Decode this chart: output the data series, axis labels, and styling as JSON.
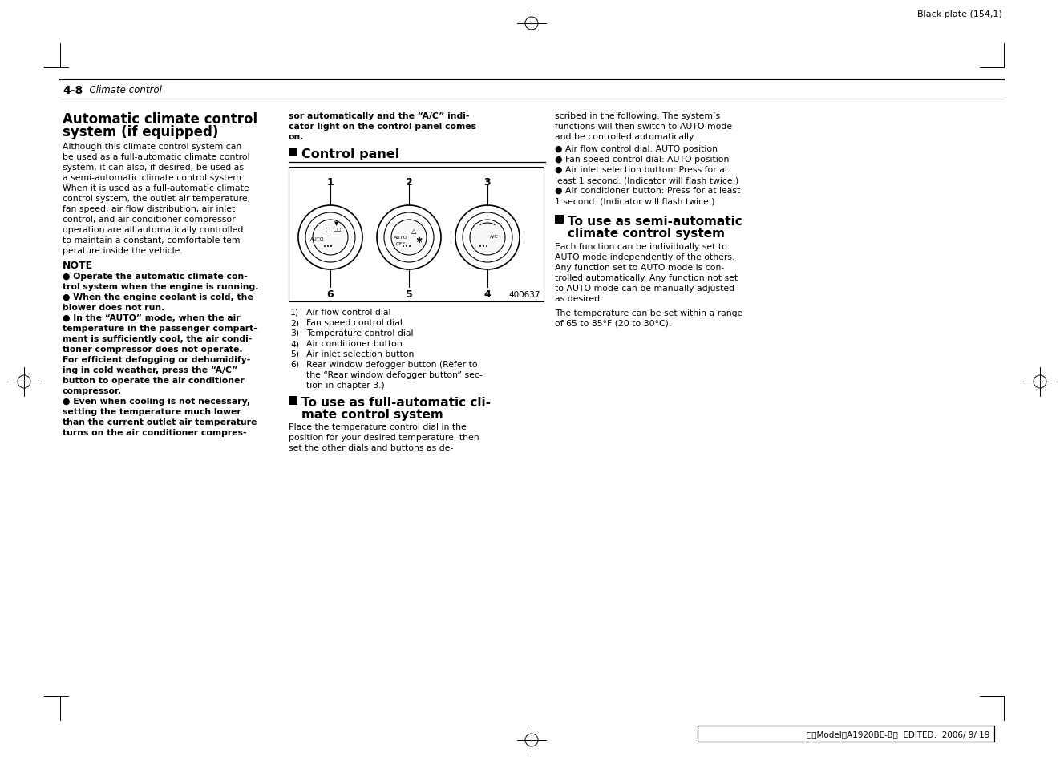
{
  "page_bg": "#ffffff",
  "header_text": "Black plate (154,1)",
  "section_label": "4-8",
  "section_italic": "  Climate control",
  "footer_text": "北米ModelＢA1920BE-B＂  EDITED:  2006/ 9/ 19",
  "col1_title1": "Automatic climate control",
  "col1_title2": "system (if equipped)",
  "col1_para": [
    "Although this climate control system can",
    "be used as a full-automatic climate control",
    "system, it can also, if desired, be used as",
    "a semi-automatic climate control system.",
    "When it is used as a full-automatic climate",
    "control system, the outlet air temperature,",
    "fan speed, air flow distribution, air inlet",
    "control, and air conditioner compressor",
    "operation are all automatically controlled",
    "to maintain a constant, comfortable tem-",
    "perature inside the vehicle."
  ],
  "note_title": "NOTE",
  "note_lines": [
    [
      "●",
      " Operate the automatic climate con-"
    ],
    [
      "",
      "trol system when the engine is running."
    ],
    [
      "●",
      " When the engine coolant is cold, the"
    ],
    [
      "",
      "blower does not run."
    ],
    [
      "●",
      " In the “AUTO” mode, when the air"
    ],
    [
      "",
      "temperature in the passenger compart-"
    ],
    [
      "",
      "ment is sufficiently cool, the air condi-"
    ],
    [
      "",
      "tioner compressor does not operate."
    ],
    [
      "",
      "For efficient defogging or dehumidify-"
    ],
    [
      "",
      "ing in cold weather, press the “A/C”"
    ],
    [
      "",
      "button to operate the air conditioner"
    ],
    [
      "",
      "compressor."
    ],
    [
      "●",
      " Even when cooling is not necessary,"
    ],
    [
      "",
      "setting the temperature much lower"
    ],
    [
      "",
      "than the current outlet air temperature"
    ],
    [
      "",
      "turns on the air conditioner compres-"
    ]
  ],
  "col2_bold_lines": [
    "sor automatically and the “A/C” indi-",
    "cator light on the control panel comes",
    "on."
  ],
  "control_panel_title": "Control panel",
  "dial_labels_top": [
    "1",
    "2",
    "3"
  ],
  "dial_labels_bottom": [
    "6",
    "5",
    "4"
  ],
  "diagram_number": "400637",
  "num_list": [
    [
      "1)",
      "Air flow control dial"
    ],
    [
      "2)",
      "Fan speed control dial"
    ],
    [
      "3)",
      "Temperature control dial"
    ],
    [
      "4)",
      "Air conditioner button"
    ],
    [
      "5)",
      "Air inlet selection button"
    ],
    [
      "6)",
      "Rear window defogger button (Refer to"
    ],
    [
      "",
      "the “Rear window defogger button” sec-"
    ],
    [
      "",
      "tion in chapter 3.)"
    ]
  ],
  "full_auto_title1": "To use as full-automatic cli-",
  "full_auto_title2": "mate control system",
  "full_auto_lines": [
    "Place the temperature control dial in the",
    "position for your desired temperature, then",
    "set the other dials and buttons as de-"
  ],
  "col3_intro": [
    "scribed in the following. The system’s",
    "functions will then switch to AUTO mode",
    "and be controlled automatically."
  ],
  "col3_bullets": [
    [
      "●",
      " Air flow control dial: AUTO position"
    ],
    [
      "●",
      " Fan speed control dial: AUTO position"
    ],
    [
      "●",
      " Air inlet selection button: Press for at"
    ],
    [
      "",
      "least 1 second. (Indicator will flash twice.)"
    ],
    [
      "●",
      " Air conditioner button: Press for at least"
    ],
    [
      "",
      "1 second. (Indicator will flash twice.)"
    ]
  ],
  "semi_title1": "To use as semi-automatic",
  "semi_title2": "climate control system",
  "semi_lines1": [
    "Each function can be individually set to",
    "AUTO mode independently of the others.",
    "Any function set to AUTO mode is con-",
    "trolled automatically. Any function not set",
    "to AUTO mode can be manually adjusted",
    "as desired."
  ],
  "semi_lines2": [
    "The temperature can be set within a range",
    "of 65 to 85°F (20 to 30°C)."
  ]
}
